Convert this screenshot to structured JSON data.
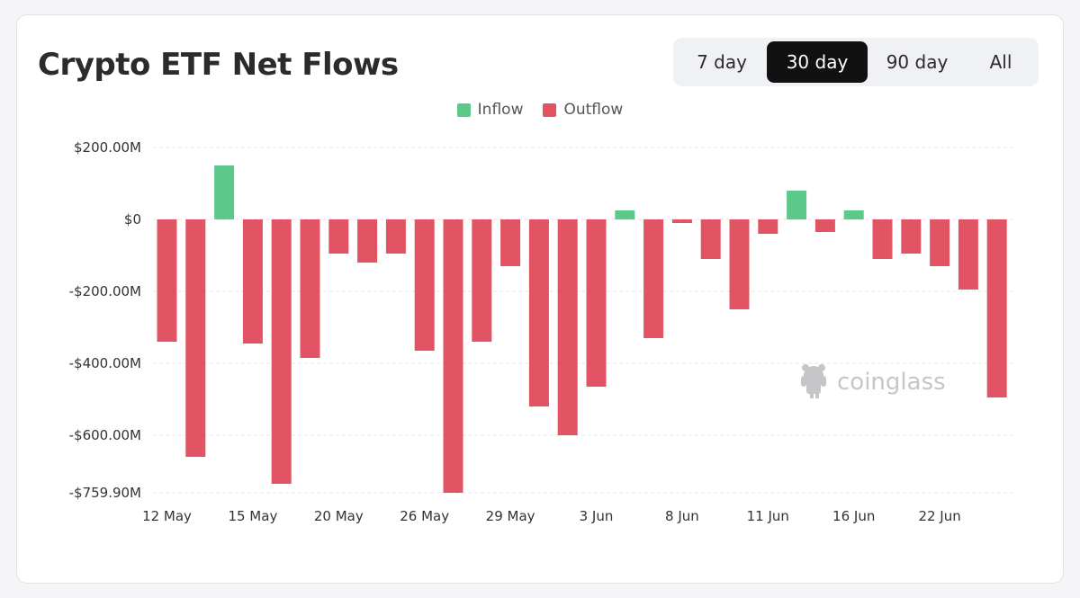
{
  "title": "Crypto ETF Net Flows",
  "tabs": [
    {
      "label": "7 day",
      "active": false
    },
    {
      "label": "30 day",
      "active": true
    },
    {
      "label": "90 day",
      "active": false
    },
    {
      "label": "All",
      "active": false
    }
  ],
  "legend": [
    {
      "label": "Inflow",
      "color": "#5cc98a"
    },
    {
      "label": "Outflow",
      "color": "#e25463"
    }
  ],
  "watermark": "coinglass",
  "chart_data": {
    "type": "bar",
    "title": "Crypto ETF Net Flows",
    "units": "USD (millions)",
    "ylim": [
      -759.9,
      200
    ],
    "yticks": [
      {
        "value": 200,
        "label": "$200.00M"
      },
      {
        "value": 0,
        "label": "$0"
      },
      {
        "value": -200,
        "label": "-$200.00M"
      },
      {
        "value": -400,
        "label": "-$400.00M"
      },
      {
        "value": -600,
        "label": "-$600.00M"
      },
      {
        "value": -759.9,
        "label": "-$759.90M"
      }
    ],
    "xtick_labels": [
      {
        "index": 0,
        "label": "12 May"
      },
      {
        "index": 3,
        "label": "15 May"
      },
      {
        "index": 6,
        "label": "20 May"
      },
      {
        "index": 9,
        "label": "26 May"
      },
      {
        "index": 12,
        "label": "29 May"
      },
      {
        "index": 15,
        "label": "3 Jun"
      },
      {
        "index": 18,
        "label": "8 Jun"
      },
      {
        "index": 21,
        "label": "11 Jun"
      },
      {
        "index": 24,
        "label": "16 Jun"
      },
      {
        "index": 27,
        "label": "22 Jun"
      }
    ],
    "values": [
      -340,
      -660,
      150,
      -345,
      -735,
      -385,
      -95,
      -120,
      -95,
      -365,
      -760,
      -340,
      -130,
      -520,
      -600,
      -465,
      25,
      -330,
      -10,
      -110,
      -250,
      -40,
      80,
      -35,
      25,
      -110,
      -95,
      -130,
      -195,
      -495
    ],
    "colors": {
      "positive": "#5cc98a",
      "negative": "#e25463",
      "grid": "#e6e6ea"
    },
    "grid": true,
    "legend_position": "top-center"
  }
}
